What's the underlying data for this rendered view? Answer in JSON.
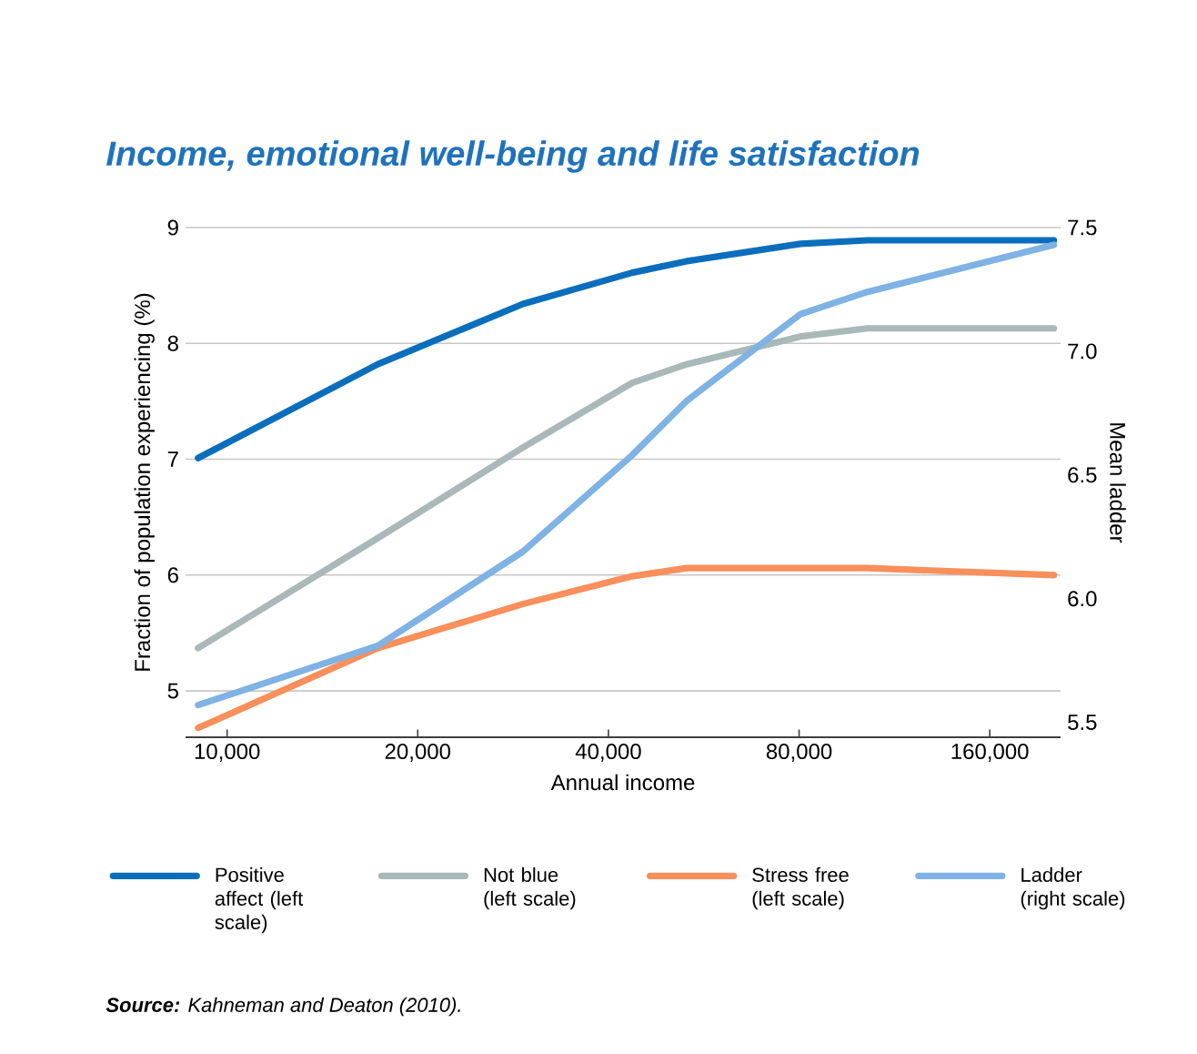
{
  "chart_data": {
    "type": "line",
    "title": "Income, emotional well-being and life satisfaction",
    "xlabel": "Annual income",
    "ylabel": "Fraction of population experiencing (%)",
    "y2label": "Mean ladder",
    "x": [
      9000,
      17300,
      29300,
      43600,
      53200,
      80400,
      102600,
      202000
    ],
    "series": [
      {
        "name": "Positive affect (left scale)",
        "color": "#0a6ebd",
        "values": [
          7.01,
          7.82,
          8.34,
          8.61,
          8.71,
          8.86,
          8.89,
          8.89
        ]
      },
      {
        "name": "Not blue (left scale)",
        "color": "#a9b8b8",
        "values": [
          5.37,
          6.32,
          7.1,
          7.66,
          7.82,
          8.06,
          8.13,
          8.13
        ]
      },
      {
        "name": "Stress free (left scale)",
        "color": "#f98f5a",
        "values": [
          4.68,
          5.37,
          5.75,
          5.99,
          6.06,
          6.06,
          6.06,
          6.0
        ]
      },
      {
        "name": "Ladder (right scale)",
        "color": "#7fb2e5",
        "axis": "y2",
        "values": [
          5.57,
          5.81,
          6.19,
          6.58,
          6.8,
          7.15,
          7.24,
          7.43
        ]
      }
    ],
    "log": "x",
    "xlim": [
      8600,
      207000
    ],
    "xticks": [
      {
        "value": 10000,
        "label": "10,000"
      },
      {
        "value": 20000,
        "label": "20,000"
      },
      {
        "value": 40000,
        "label": "40,000"
      },
      {
        "value": 80000,
        "label": "80,000"
      },
      {
        "value": 160000,
        "label": "160,000"
      }
    ],
    "ylim": [
      4.6,
      9
    ],
    "yticks": [
      5,
      6,
      7,
      8,
      9
    ],
    "y2lim": [
      5.44,
      7.5
    ],
    "y2ticks": [
      5.5,
      {
        "value": 6,
        "label": "6.0"
      },
      6.5,
      {
        "value": 7,
        "label": "7.0"
      },
      7.5
    ],
    "grid": "y",
    "legend": "bottom",
    "line_style": "solid",
    "marker": "none",
    "annotations": [
      "**Source:** Kahneman and Deaton (2010)."
    ]
  }
}
